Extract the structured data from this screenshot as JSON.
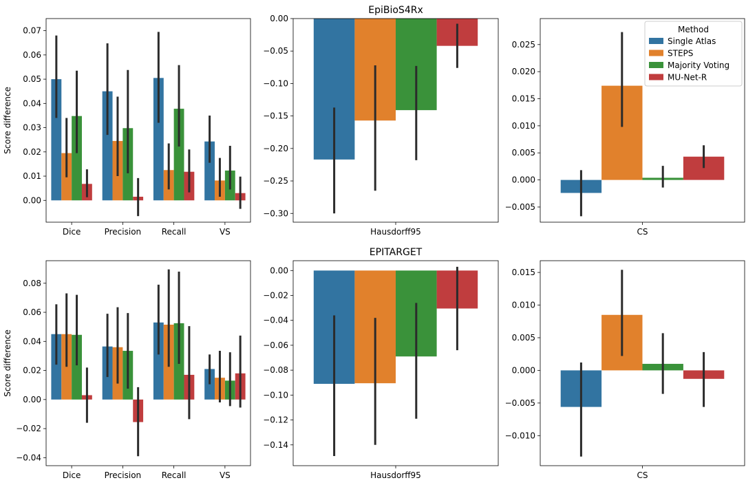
{
  "colors": {
    "Single Atlas": "#3274a1",
    "STEPS": "#e1812c",
    "Majority Voting": "#3a923a",
    "MU-Net-R": "#c03d3e",
    "error_bar": "#2b2b2b"
  },
  "legend": {
    "title": "Method",
    "location": "upper right of top-right panel",
    "entries": [
      "Single Atlas",
      "STEPS",
      "Majority Voting",
      "MU-Net-R"
    ]
  },
  "chart_data": [
    {
      "type": "bar",
      "row_title": "",
      "title": "",
      "ylabel": "Score difference",
      "xlabel": "",
      "ylim": [
        -0.009,
        0.075
      ],
      "yticks": [
        0.0,
        0.01,
        0.02,
        0.03,
        0.04,
        0.05,
        0.06,
        0.07
      ],
      "ytick_labels": [
        "0.00",
        "0.01",
        "0.02",
        "0.03",
        "0.04",
        "0.05",
        "0.06",
        "0.07"
      ],
      "categories": [
        "Dice",
        "Precision",
        "Recall",
        "VS"
      ],
      "series": [
        {
          "name": "Single Atlas",
          "values": [
            0.05,
            0.045,
            0.0505,
            0.0243
          ],
          "err_low": [
            0.034,
            0.027,
            0.032,
            0.0155
          ],
          "err_high": [
            0.068,
            0.0648,
            0.0695,
            0.035
          ]
        },
        {
          "name": "STEPS",
          "values": [
            0.0195,
            0.0245,
            0.0125,
            0.0082
          ],
          "err_low": [
            0.0095,
            0.01,
            0.0045,
            0.0015
          ],
          "err_high": [
            0.034,
            0.0428,
            0.0235,
            0.0175
          ]
        },
        {
          "name": "Majority Voting",
          "values": [
            0.0348,
            0.0298,
            0.0378,
            0.0123
          ],
          "err_low": [
            0.0195,
            0.0112,
            0.0222,
            0.0045
          ],
          "err_high": [
            0.0535,
            0.0538,
            0.0558,
            0.0225
          ]
        },
        {
          "name": "MU-Net-R",
          "values": [
            0.0068,
            0.0015,
            0.0118,
            0.003
          ],
          "err_low": [
            0.0013,
            -0.0065,
            0.0033,
            -0.0035
          ],
          "err_high": [
            0.0128,
            0.0092,
            0.021,
            0.0098
          ]
        }
      ]
    },
    {
      "type": "bar",
      "title": "EpiBioS4Rx",
      "ylabel": "",
      "xlabel": "",
      "ylim": [
        -0.3135,
        0.0
      ],
      "yticks": [
        0.0,
        -0.05,
        -0.1,
        -0.15,
        -0.2,
        -0.25,
        -0.3
      ],
      "ytick_labels": [
        "0.00",
        "−0.05",
        "−0.10",
        "−0.15",
        "−0.20",
        "−0.25",
        "−0.30"
      ],
      "categories": [
        "Hausdorff95"
      ],
      "series": [
        {
          "name": "Single Atlas",
          "values": [
            -0.217
          ],
          "err_low": [
            -0.3
          ],
          "err_high": [
            -0.137
          ]
        },
        {
          "name": "STEPS",
          "values": [
            -0.157
          ],
          "err_low": [
            -0.265
          ],
          "err_high": [
            -0.072
          ]
        },
        {
          "name": "Majority Voting",
          "values": [
            -0.141
          ],
          "err_low": [
            -0.218
          ],
          "err_high": [
            -0.073
          ]
        },
        {
          "name": "MU-Net-R",
          "values": [
            -0.042
          ],
          "err_low": [
            -0.076
          ],
          "err_high": [
            -0.008
          ]
        }
      ]
    },
    {
      "type": "bar",
      "title": "",
      "ylabel": "",
      "xlabel": "",
      "ylim": [
        -0.0078,
        0.0298
      ],
      "yticks": [
        -0.005,
        0.0,
        0.005,
        0.01,
        0.015,
        0.02,
        0.025
      ],
      "ytick_labels": [
        "−0.005",
        "0.000",
        "0.005",
        "0.010",
        "0.015",
        "0.020",
        "0.025"
      ],
      "categories": [
        "CS"
      ],
      "series": [
        {
          "name": "Single Atlas",
          "values": [
            -0.0024
          ],
          "err_low": [
            -0.0067
          ],
          "err_high": [
            0.0018
          ]
        },
        {
          "name": "STEPS",
          "values": [
            0.0174
          ],
          "err_low": [
            0.0098
          ],
          "err_high": [
            0.0273
          ]
        },
        {
          "name": "Majority Voting",
          "values": [
            0.0004
          ],
          "err_low": [
            -0.0014
          ],
          "err_high": [
            0.0026
          ]
        },
        {
          "name": "MU-Net-R",
          "values": [
            0.0043
          ],
          "err_low": [
            0.0022
          ],
          "err_high": [
            0.0064
          ]
        }
      ]
    },
    {
      "type": "bar",
      "title": "",
      "ylabel": "Score difference",
      "xlabel": "",
      "ylim": [
        -0.0455,
        0.0955
      ],
      "yticks": [
        -0.04,
        -0.02,
        0.0,
        0.02,
        0.04,
        0.06,
        0.08
      ],
      "ytick_labels": [
        "−0.04",
        "−0.02",
        "0.00",
        "0.02",
        "0.04",
        "0.06",
        "0.08"
      ],
      "categories": [
        "Dice",
        "Precision",
        "Recall",
        "VS"
      ],
      "series": [
        {
          "name": "Single Atlas",
          "values": [
            0.045,
            0.0365,
            0.053,
            0.021
          ],
          "err_low": [
            0.024,
            0.0155,
            0.031,
            0.0105
          ],
          "err_high": [
            0.0655,
            0.059,
            0.079,
            0.031
          ]
        },
        {
          "name": "STEPS",
          "values": [
            0.045,
            0.036,
            0.0515,
            0.015
          ],
          "err_low": [
            0.0225,
            0.011,
            0.0225,
            -0.002
          ],
          "err_high": [
            0.073,
            0.0635,
            0.0895,
            0.0335
          ]
        },
        {
          "name": "Majority Voting",
          "values": [
            0.0445,
            0.0335,
            0.0525,
            0.013
          ],
          "err_low": [
            0.0235,
            0.0075,
            0.0245,
            -0.0045
          ],
          "err_high": [
            0.072,
            0.0595,
            0.088,
            0.0325
          ]
        },
        {
          "name": "MU-Net-R",
          "values": [
            0.003,
            -0.0155,
            0.017,
            0.018
          ],
          "err_low": [
            -0.016,
            -0.039,
            -0.0135,
            -0.0055
          ],
          "err_high": [
            0.022,
            0.0085,
            0.0505,
            0.044
          ]
        }
      ]
    },
    {
      "type": "bar",
      "title": "EPITARGET",
      "ylabel": "",
      "xlabel": "",
      "ylim": [
        -0.1567,
        0.0079
      ],
      "yticks": [
        0.0,
        -0.02,
        -0.04,
        -0.06,
        -0.08,
        -0.1,
        -0.12,
        -0.14
      ],
      "ytick_labels": [
        "0.00",
        "−0.02",
        "−0.04",
        "−0.06",
        "−0.08",
        "−0.10",
        "−0.12",
        "−0.14"
      ],
      "categories": [
        "Hausdorff95"
      ],
      "series": [
        {
          "name": "Single Atlas",
          "values": [
            -0.091
          ],
          "err_low": [
            -0.149
          ],
          "err_high": [
            -0.036
          ]
        },
        {
          "name": "STEPS",
          "values": [
            -0.0905
          ],
          "err_low": [
            -0.14
          ],
          "err_high": [
            -0.038
          ]
        },
        {
          "name": "Majority Voting",
          "values": [
            -0.069
          ],
          "err_low": [
            -0.119
          ],
          "err_high": [
            -0.026
          ]
        },
        {
          "name": "MU-Net-R",
          "values": [
            -0.0305
          ],
          "err_low": [
            -0.064
          ],
          "err_high": [
            0.003
          ]
        }
      ]
    },
    {
      "type": "bar",
      "title": "",
      "ylabel": "",
      "xlabel": "",
      "ylim": [
        -0.0146,
        0.0168
      ],
      "yticks": [
        -0.01,
        -0.005,
        0.0,
        0.005,
        0.01,
        0.015
      ],
      "ytick_labels": [
        "−0.010",
        "−0.005",
        "0.000",
        "0.005",
        "0.010",
        "0.015"
      ],
      "categories": [
        "CS"
      ],
      "series": [
        {
          "name": "Single Atlas",
          "values": [
            -0.0056
          ],
          "err_low": [
            -0.0132
          ],
          "err_high": [
            0.0012
          ]
        },
        {
          "name": "STEPS",
          "values": [
            0.0085
          ],
          "err_low": [
            0.0022
          ],
          "err_high": [
            0.0154
          ]
        },
        {
          "name": "Majority Voting",
          "values": [
            0.001
          ],
          "err_low": [
            -0.0036
          ],
          "err_high": [
            0.0057
          ]
        },
        {
          "name": "MU-Net-R",
          "values": [
            -0.0013
          ],
          "err_low": [
            -0.0056
          ],
          "err_high": [
            0.0028
          ]
        }
      ]
    }
  ]
}
